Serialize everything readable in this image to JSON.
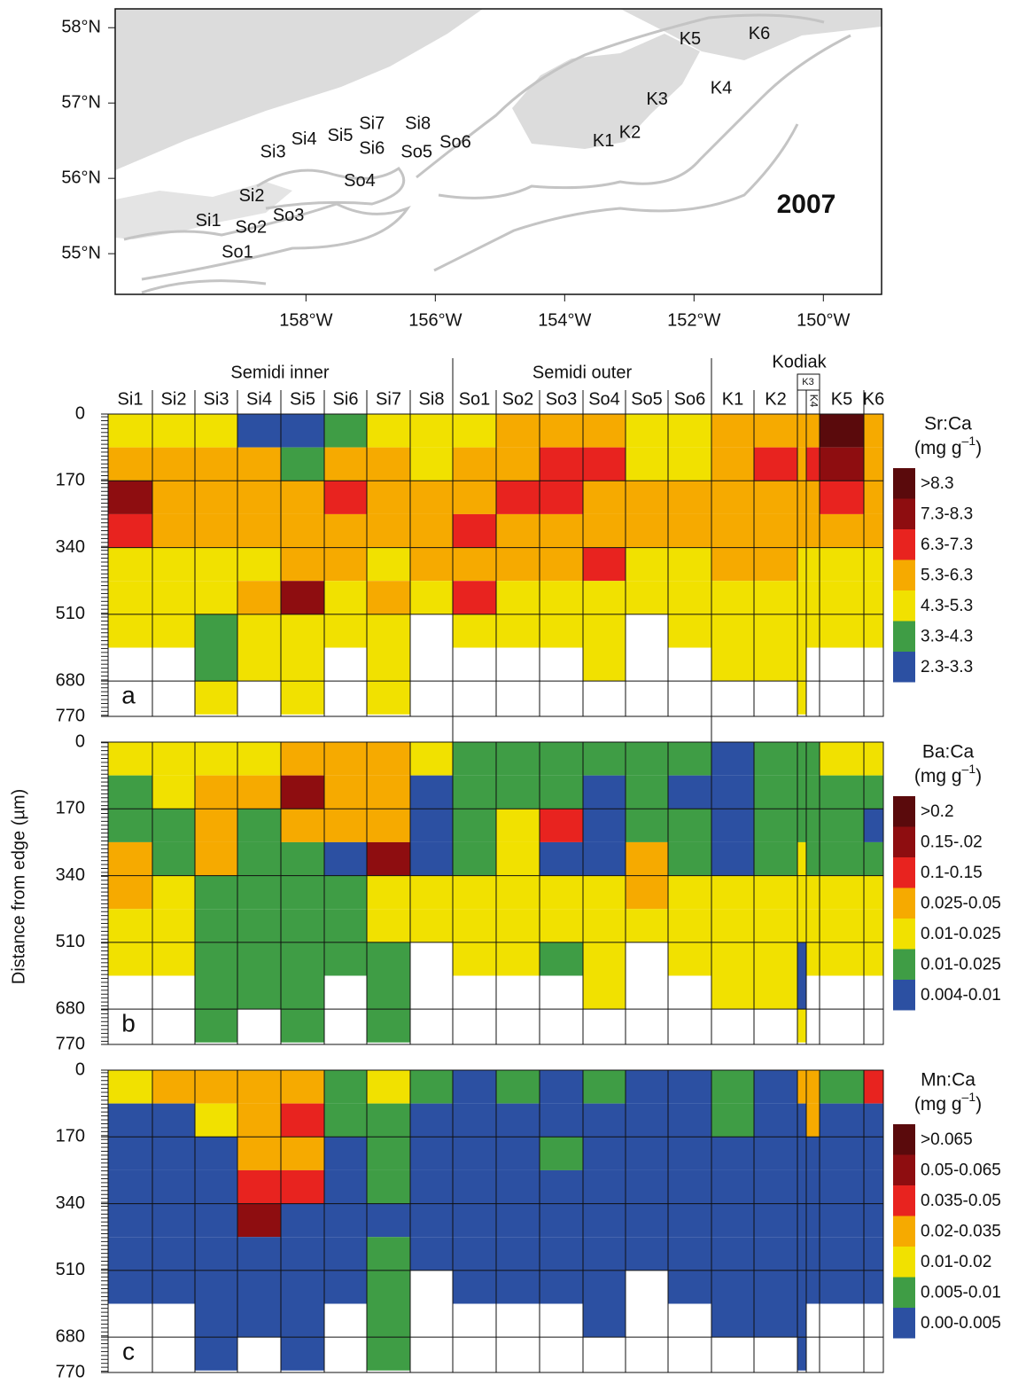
{
  "chart_data": [
    {
      "type": "map",
      "year": "2007",
      "xlim": [
        -160.95,
        -149.1
      ],
      "ylim": [
        54.46,
        58.25
      ],
      "xticks": [
        {
          "value": -158,
          "label": "158°W"
        },
        {
          "value": -156,
          "label": "156°W"
        },
        {
          "value": -154,
          "label": "154°W"
        },
        {
          "value": -152,
          "label": "152°W"
        },
        {
          "value": -150,
          "label": "150°W"
        }
      ],
      "yticks": [
        {
          "value": 55,
          "label": "55°N"
        },
        {
          "value": 56,
          "label": "56°N"
        },
        {
          "value": 57,
          "label": "57°N"
        },
        {
          "value": 58,
          "label": "58°N"
        }
      ],
      "stations": [
        {
          "name": "Si1",
          "lon": -159.51,
          "lat": 55.43
        },
        {
          "name": "Si2",
          "lon": -158.84,
          "lat": 55.76
        },
        {
          "name": "Si3",
          "lon": -158.51,
          "lat": 56.34
        },
        {
          "name": "Si4",
          "lon": -158.03,
          "lat": 56.51
        },
        {
          "name": "Si5",
          "lon": -157.47,
          "lat": 56.56
        },
        {
          "name": "Si6",
          "lon": -156.98,
          "lat": 56.39
        },
        {
          "name": "Si7",
          "lon": -156.98,
          "lat": 56.72
        },
        {
          "name": "Si8",
          "lon": -156.27,
          "lat": 56.72
        },
        {
          "name": "So1",
          "lon": -159.06,
          "lat": 55.01
        },
        {
          "name": "So2",
          "lon": -158.85,
          "lat": 55.34
        },
        {
          "name": "So3",
          "lon": -158.27,
          "lat": 55.5
        },
        {
          "name": "So4",
          "lon": -157.17,
          "lat": 55.96
        },
        {
          "name": "So5",
          "lon": -156.29,
          "lat": 56.34
        },
        {
          "name": "So6",
          "lon": -155.69,
          "lat": 56.47
        },
        {
          "name": "K1",
          "lon": -153.4,
          "lat": 56.49
        },
        {
          "name": "K2",
          "lon": -152.99,
          "lat": 56.6
        },
        {
          "name": "K3",
          "lon": -152.57,
          "lat": 57.04
        },
        {
          "name": "K4",
          "lon": -151.58,
          "lat": 57.19
        },
        {
          "name": "K5",
          "lon": -152.06,
          "lat": 57.84
        },
        {
          "name": "K6",
          "lon": -150.99,
          "lat": 57.91
        }
      ]
    },
    {
      "type": "heatmap",
      "panel_label": "a",
      "legend_title": "Sr:Ca",
      "unit": [
        "(mg g",
        "–1",
        ")"
      ],
      "groups": [
        "Semidi inner",
        "Semidi outer",
        "Kodiak"
      ],
      "stations": [
        "Si1",
        "Si2",
        "Si3",
        "Si4",
        "Si5",
        "Si6",
        "Si7",
        "Si8",
        "So1",
        "So2",
        "So3",
        "So4",
        "So5",
        "So6",
        "K1",
        "K2",
        "K3",
        "K4",
        "K5",
        "K6"
      ],
      "classes": [
        ">8.3",
        "7.3-8.3",
        "6.3-7.3",
        "5.3-6.3",
        "4.3-5.3",
        "3.3-4.3",
        "2.3-3.3"
      ],
      "colors": [
        "#5a0a0c",
        "#8e0d10",
        "#e8231f",
        "#f6aa00",
        "#f1e100",
        "#3f9d45",
        "#2c50a2"
      ],
      "ylim": [
        0,
        770
      ],
      "yticks": [
        0,
        170,
        340,
        510,
        680,
        770
      ],
      "depth_bins": [
        0,
        85,
        170,
        255,
        340,
        425,
        510,
        595,
        680,
        765
      ],
      "values": [
        [
          4,
          3,
          1,
          2,
          4,
          4,
          4
        ],
        [
          4,
          3,
          3,
          3,
          4,
          4,
          4
        ],
        [
          4,
          3,
          3,
          3,
          4,
          4,
          5,
          5,
          4
        ],
        [
          6,
          3,
          3,
          3,
          4,
          3,
          4,
          4
        ],
        [
          6,
          5,
          3,
          3,
          3,
          1,
          4,
          4,
          4
        ],
        [
          5,
          3,
          2,
          3,
          3,
          4,
          4
        ],
        [
          4,
          3,
          3,
          3,
          4,
          3,
          4,
          4,
          4
        ],
        [
          4,
          4,
          3,
          3,
          3,
          4
        ],
        [
          4,
          3,
          3,
          2,
          3,
          2,
          4
        ],
        [
          3,
          3,
          2,
          3,
          3,
          4,
          4
        ],
        [
          3,
          2,
          2,
          3,
          3,
          4,
          4
        ],
        [
          3,
          2,
          3,
          3,
          2,
          4,
          4,
          4
        ],
        [
          4,
          4,
          3,
          3,
          4,
          4
        ],
        [
          4,
          4,
          3,
          3,
          4,
          4,
          4
        ],
        [
          3,
          3,
          3,
          3,
          3,
          4,
          4,
          4
        ],
        [
          3,
          2,
          3,
          3,
          3,
          4,
          4,
          4
        ],
        [
          3,
          3,
          3,
          3,
          4,
          4,
          4,
          4,
          4
        ],
        [
          3,
          2,
          3,
          3,
          4,
          4,
          4
        ],
        [
          0,
          1,
          2,
          3,
          4,
          4,
          4
        ],
        [
          3,
          3,
          3,
          3,
          4,
          4,
          4
        ]
      ]
    },
    {
      "type": "heatmap",
      "panel_label": "b",
      "legend_title": "Ba:Ca",
      "unit": [
        "(mg g",
        "–1",
        ")"
      ],
      "ylabel": "Distance from edge (µm)",
      "classes": [
        ">0.2",
        "0.15-.02",
        "0.1-0.15",
        "0.025-0.05",
        "0.01-0.025",
        "0.01-0.025",
        "0.004-0.01"
      ],
      "colors": [
        "#5a0a0c",
        "#8e0d10",
        "#e8231f",
        "#f6aa00",
        "#f1e100",
        "#3f9d45",
        "#2c50a2"
      ],
      "ylim": [
        0,
        770
      ],
      "yticks": [
        0,
        170,
        340,
        510,
        680,
        770
      ],
      "depth_bins": [
        0,
        85,
        170,
        255,
        340,
        425,
        510,
        595,
        680,
        765
      ],
      "values": [
        [
          4,
          5,
          5,
          3,
          3,
          4,
          4
        ],
        [
          4,
          4,
          5,
          5,
          4,
          4,
          4
        ],
        [
          4,
          3,
          3,
          3,
          5,
          5,
          5,
          5,
          5
        ],
        [
          4,
          3,
          5,
          5,
          5,
          5,
          5,
          5
        ],
        [
          3,
          1,
          3,
          5,
          5,
          5,
          5,
          5,
          5
        ],
        [
          3,
          3,
          3,
          6,
          5,
          5,
          5
        ],
        [
          3,
          3,
          3,
          1,
          4,
          4,
          5,
          5,
          5
        ],
        [
          4,
          6,
          6,
          6,
          4,
          4
        ],
        [
          5,
          5,
          5,
          5,
          4,
          4,
          4
        ],
        [
          5,
          5,
          4,
          4,
          4,
          4,
          4
        ],
        [
          5,
          5,
          2,
          6,
          4,
          4,
          5
        ],
        [
          5,
          6,
          6,
          6,
          4,
          4,
          4,
          4
        ],
        [
          5,
          5,
          5,
          3,
          3,
          4
        ],
        [
          5,
          6,
          5,
          5,
          4,
          4,
          4
        ],
        [
          6,
          6,
          6,
          6,
          4,
          4,
          4,
          4
        ],
        [
          5,
          5,
          5,
          5,
          4,
          4,
          4,
          4
        ],
        [
          5,
          5,
          5,
          4,
          4,
          4,
          6,
          6,
          4
        ],
        [
          5,
          5,
          5,
          5,
          4,
          4,
          4
        ],
        [
          4,
          5,
          5,
          5,
          4,
          4,
          4
        ],
        [
          4,
          5,
          6,
          5,
          4,
          4,
          4
        ]
      ]
    },
    {
      "type": "heatmap",
      "panel_label": "c",
      "legend_title": "Mn:Ca",
      "unit": [
        "(mg g",
        "–1",
        ")"
      ],
      "classes": [
        ">0.065",
        "0.05-0.065",
        "0.035-0.05",
        "0.02-0.035",
        "0.01-0.02",
        "0.005-0.01",
        "0.00-0.005"
      ],
      "colors": [
        "#5a0a0c",
        "#8e0d10",
        "#e8231f",
        "#f6aa00",
        "#f1e100",
        "#3f9d45",
        "#2c50a2"
      ],
      "ylim": [
        0,
        770
      ],
      "yticks": [
        0,
        170,
        340,
        510,
        680,
        770
      ],
      "depth_bins": [
        0,
        85,
        170,
        255,
        340,
        425,
        510,
        595,
        680,
        765
      ],
      "values": [
        [
          4,
          6,
          6,
          6,
          6,
          6,
          6
        ],
        [
          3,
          6,
          6,
          6,
          6,
          6,
          6
        ],
        [
          3,
          4,
          6,
          6,
          6,
          6,
          6,
          6,
          6
        ],
        [
          3,
          3,
          3,
          2,
          1,
          6,
          6,
          6
        ],
        [
          3,
          2,
          3,
          2,
          6,
          6,
          6,
          6,
          6
        ],
        [
          5,
          5,
          6,
          6,
          6,
          6,
          6
        ],
        [
          4,
          5,
          5,
          5,
          6,
          5,
          5,
          5,
          5
        ],
        [
          5,
          6,
          6,
          6,
          6,
          6
        ],
        [
          6,
          6,
          6,
          6,
          6,
          6,
          6
        ],
        [
          5,
          6,
          6,
          6,
          6,
          6,
          6
        ],
        [
          6,
          6,
          5,
          6,
          6,
          6,
          6
        ],
        [
          5,
          6,
          6,
          6,
          6,
          6,
          6,
          6
        ],
        [
          6,
          6,
          6,
          6,
          6,
          6
        ],
        [
          6,
          6,
          6,
          6,
          6,
          6,
          6
        ],
        [
          5,
          5,
          6,
          6,
          6,
          6,
          6,
          6
        ],
        [
          6,
          6,
          6,
          6,
          6,
          6,
          6,
          6
        ],
        [
          3,
          6,
          6,
          6,
          6,
          6,
          6,
          6,
          6
        ],
        [
          3,
          3,
          6,
          6,
          6,
          6,
          6
        ],
        [
          5,
          6,
          6,
          6,
          6,
          6,
          6
        ],
        [
          2,
          6,
          6,
          6,
          6,
          6,
          6
        ]
      ]
    }
  ]
}
